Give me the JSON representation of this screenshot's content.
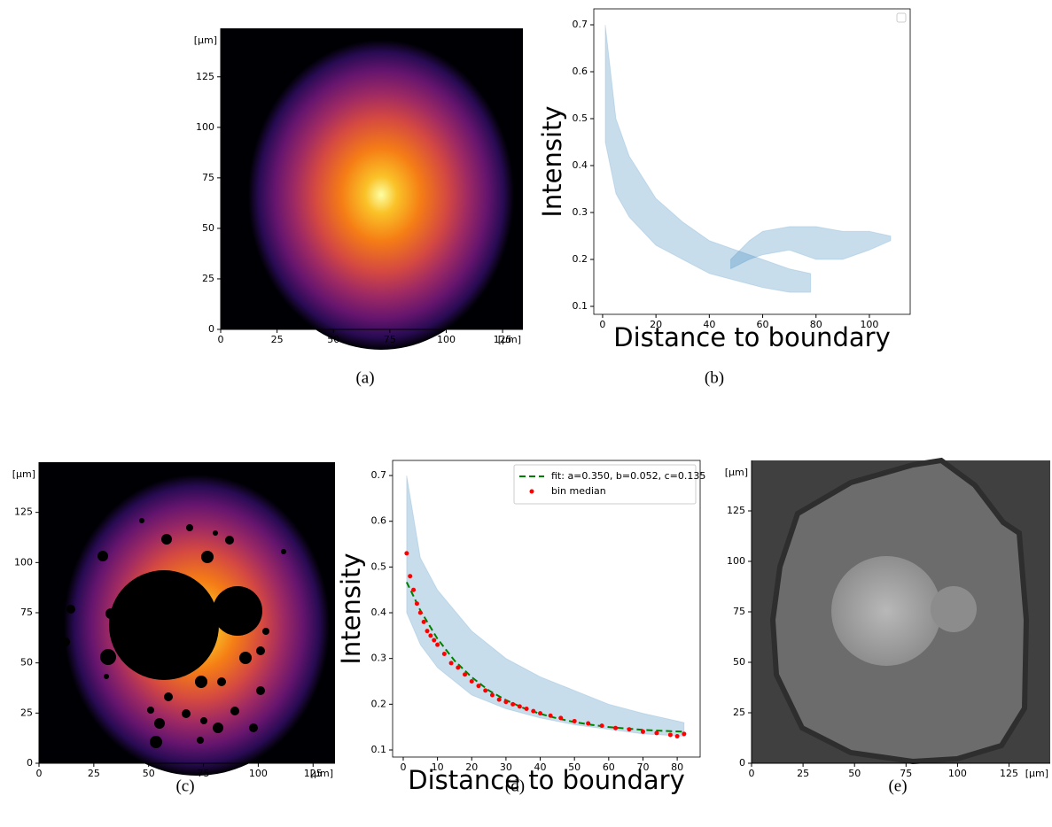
{
  "chart_data": [
    {
      "type": "image",
      "caption": "(a)",
      "colormap": "inferno",
      "xlim": [
        0,
        134
      ],
      "ylim": [
        0,
        149
      ],
      "xticks": [
        0,
        25,
        50,
        75,
        100,
        125
      ],
      "yticks": [
        0,
        25,
        50,
        75,
        100,
        125
      ],
      "xlabel": "[μm]",
      "ylabel": "[μm]"
    },
    {
      "type": "scatter",
      "caption": "(b)",
      "xlabel": "Distance to boundary",
      "ylabel": "Intensity",
      "xlim": [
        -3.3,
        115.3
      ],
      "ylim": [
        0.083,
        0.734
      ],
      "xticks": [
        0,
        20,
        40,
        60,
        80,
        100
      ],
      "yticks": [
        0.1,
        0.2,
        0.3,
        0.4,
        0.5,
        0.6,
        0.7
      ],
      "legend": "upper right",
      "bands": [
        {
          "color": "#1f77b4",
          "x": [
            1,
            5,
            10,
            20,
            30,
            40,
            50,
            60,
            70,
            78
          ],
          "low": [
            0.45,
            0.34,
            0.29,
            0.23,
            0.2,
            0.17,
            0.155,
            0.14,
            0.13,
            0.13
          ],
          "high": [
            0.7,
            0.5,
            0.42,
            0.33,
            0.28,
            0.24,
            0.22,
            0.2,
            0.18,
            0.17
          ]
        },
        {
          "color": "#1f77b4",
          "x": [
            48,
            55,
            60,
            70,
            80,
            90,
            100,
            108
          ],
          "low": [
            0.18,
            0.2,
            0.21,
            0.22,
            0.2,
            0.2,
            0.22,
            0.24
          ],
          "high": [
            0.2,
            0.24,
            0.26,
            0.27,
            0.27,
            0.26,
            0.26,
            0.25
          ]
        }
      ],
      "series": []
    },
    {
      "type": "image",
      "caption": "(c)",
      "colormap": "inferno",
      "xlim": [
        0,
        135
      ],
      "ylim": [
        0,
        150
      ],
      "xticks": [
        0,
        25,
        50,
        75,
        100,
        125
      ],
      "yticks": [
        0,
        25,
        50,
        75,
        100,
        125
      ],
      "xlabel": "[μm]",
      "ylabel": "[μm]"
    },
    {
      "type": "scatter",
      "caption": "(d)",
      "xlabel": "Distance to boundary",
      "ylabel": "Intensity",
      "xlim": [
        -3.1,
        86.7
      ],
      "ylim": [
        0.0845,
        0.733
      ],
      "xticks": [
        0,
        10,
        20,
        30,
        40,
        50,
        60,
        70,
        80
      ],
      "yticks": [
        0.1,
        0.2,
        0.3,
        0.4,
        0.5,
        0.6,
        0.7
      ],
      "legend": "upper right",
      "bands": [
        {
          "color": "#1f77b4",
          "x": [
            1,
            5,
            10,
            20,
            30,
            40,
            50,
            60,
            70,
            82
          ],
          "low": [
            0.4,
            0.33,
            0.28,
            0.22,
            0.19,
            0.17,
            0.155,
            0.145,
            0.135,
            0.13
          ],
          "high": [
            0.7,
            0.52,
            0.45,
            0.36,
            0.3,
            0.26,
            0.23,
            0.2,
            0.18,
            0.16
          ]
        }
      ],
      "series": [
        {
          "name": "fit: a=0.350, b=0.052, c=0.135",
          "color": "#008000",
          "style": "dashed",
          "x": [
            1,
            5,
            10,
            15,
            20,
            25,
            30,
            35,
            40,
            45,
            50,
            55,
            60,
            65,
            70,
            75,
            82
          ],
          "values": [
            0.467,
            0.405,
            0.343,
            0.295,
            0.259,
            0.23,
            0.209,
            0.192,
            0.179,
            0.169,
            0.161,
            0.155,
            0.15,
            0.147,
            0.144,
            0.142,
            0.14
          ]
        },
        {
          "name": "bin median",
          "color": "#ff0000",
          "style": "dots",
          "x": [
            1,
            2,
            3,
            4,
            5,
            6,
            7,
            8,
            9,
            10,
            12,
            14,
            16,
            18,
            20,
            22,
            24,
            26,
            28,
            30,
            32,
            34,
            36,
            38,
            40,
            43,
            46,
            50,
            54,
            58,
            62,
            66,
            70,
            74,
            78,
            80,
            82
          ],
          "values": [
            0.53,
            0.48,
            0.45,
            0.42,
            0.4,
            0.38,
            0.36,
            0.35,
            0.34,
            0.33,
            0.31,
            0.29,
            0.28,
            0.265,
            0.25,
            0.24,
            0.23,
            0.22,
            0.21,
            0.205,
            0.2,
            0.195,
            0.19,
            0.185,
            0.18,
            0.175,
            0.17,
            0.163,
            0.158,
            0.153,
            0.148,
            0.145,
            0.14,
            0.137,
            0.133,
            0.13,
            0.135
          ]
        }
      ]
    },
    {
      "type": "image",
      "caption": "(e)",
      "colormap": "gray",
      "xlim": [
        0,
        145
      ],
      "ylim": [
        0,
        150
      ],
      "xticks": [
        0,
        25,
        50,
        75,
        100,
        125
      ],
      "yticks": [
        0,
        25,
        50,
        75,
        100,
        125
      ],
      "xlabel": "[μm]",
      "ylabel": "[μm]"
    }
  ]
}
